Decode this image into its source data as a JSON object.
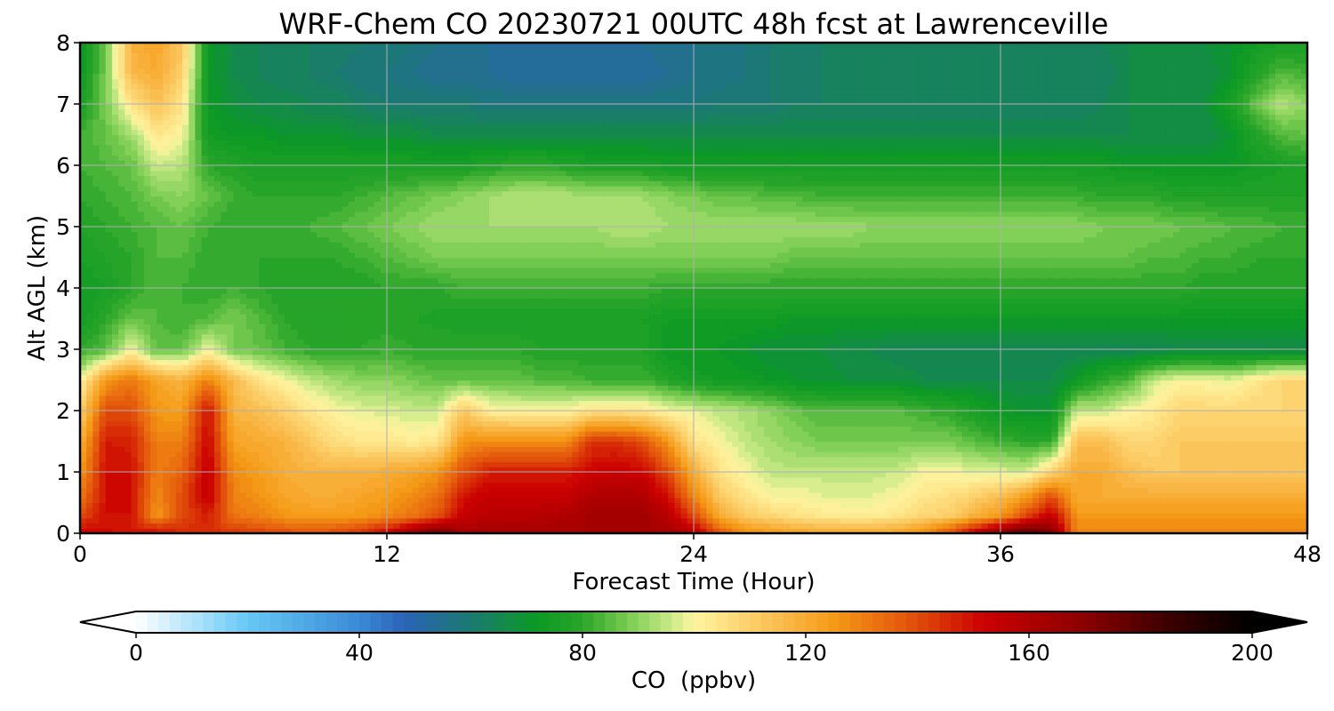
{
  "chart_data": {
    "type": "heatmap",
    "title": "WRF-Chem CO  20230721 00UTC 48h fcst at Lawrenceville",
    "xlabel": "Forecast Time (Hour)",
    "ylabel": "Alt AGL (km)",
    "xlim": [
      0,
      48
    ],
    "ylim": [
      0,
      8
    ],
    "xticks": [
      0,
      12,
      24,
      36,
      48
    ],
    "yticks": [
      0,
      1,
      2,
      3,
      4,
      5,
      6,
      7,
      8
    ],
    "grid": true,
    "x": [
      0,
      1,
      2,
      3,
      4,
      5,
      6,
      7,
      8,
      9,
      10,
      11,
      12,
      13,
      14,
      15,
      16,
      17,
      18,
      19,
      20,
      21,
      22,
      23,
      24,
      25,
      26,
      27,
      28,
      29,
      30,
      31,
      32,
      33,
      34,
      35,
      36,
      37,
      38,
      39,
      40,
      41,
      42,
      43,
      44,
      45,
      46,
      47,
      48
    ],
    "y": [
      0,
      0.05,
      0.3,
      0.6,
      1.0,
      1.5,
      2.0,
      2.5,
      3.0,
      3.5,
      4.0,
      4.5,
      5.0,
      5.5,
      6.0,
      6.5,
      7.0,
      7.5,
      8.0
    ],
    "values": [
      [
        150,
        152,
        150,
        150,
        148,
        148,
        146,
        142,
        140,
        138,
        140,
        145,
        155,
        175,
        185,
        165,
        165,
        165,
        165,
        165,
        165,
        165,
        165,
        165,
        160,
        140,
        130,
        128,
        125,
        122,
        122,
        120,
        125,
        130,
        140,
        160,
        175,
        185,
        180,
        130,
        128,
        128,
        128,
        128,
        128,
        128,
        128,
        128,
        128
      ],
      [
        150,
        150,
        148,
        148,
        145,
        145,
        142,
        140,
        138,
        136,
        138,
        142,
        148,
        160,
        170,
        162,
        162,
        162,
        162,
        162,
        162,
        162,
        162,
        162,
        155,
        135,
        125,
        122,
        120,
        118,
        118,
        118,
        120,
        125,
        135,
        150,
        165,
        175,
        168,
        128,
        128,
        128,
        128,
        128,
        128,
        128,
        128,
        128,
        128
      ],
      [
        140,
        150,
        150,
        125,
        140,
        148,
        132,
        130,
        125,
        124,
        124,
        125,
        128,
        132,
        138,
        154,
        157,
        157,
        158,
        160,
        163,
        163,
        163,
        158,
        140,
        120,
        112,
        108,
        105,
        103,
        102,
        102,
        104,
        108,
        110,
        118,
        125,
        140,
        155,
        125,
        125,
        125,
        125,
        125,
        125,
        125,
        125,
        125,
        125
      ],
      [
        132,
        150,
        150,
        128,
        140,
        154,
        130,
        126,
        122,
        120,
        120,
        122,
        124,
        128,
        134,
        150,
        154,
        154,
        154,
        154,
        160,
        160,
        160,
        150,
        130,
        112,
        105,
        100,
        100,
        98,
        98,
        98,
        100,
        104,
        106,
        110,
        115,
        125,
        140,
        120,
        120,
        120,
        120,
        120,
        120,
        120,
        120,
        120,
        120
      ],
      [
        125,
        150,
        150,
        130,
        136,
        155,
        128,
        124,
        120,
        118,
        118,
        118,
        120,
        122,
        126,
        140,
        148,
        148,
        148,
        148,
        152,
        154,
        152,
        140,
        120,
        105,
        100,
        95,
        95,
        95,
        95,
        95,
        96,
        100,
        100,
        98,
        98,
        96,
        110,
        120,
        120,
        115,
        112,
        112,
        112,
        112,
        112,
        112,
        112
      ],
      [
        118,
        148,
        147,
        130,
        130,
        152,
        122,
        120,
        118,
        112,
        106,
        104,
        104,
        102,
        104,
        126,
        128,
        128,
        128,
        128,
        144,
        144,
        140,
        125,
        105,
        100,
        95,
        92,
        90,
        88,
        88,
        88,
        88,
        88,
        88,
        85,
        82,
        80,
        80,
        115,
        115,
        108,
        108,
        112,
        112,
        112,
        112,
        112,
        112
      ],
      [
        110,
        140,
        140,
        125,
        124,
        150,
        118,
        115,
        110,
        104,
        100,
        98,
        97,
        96,
        96,
        112,
        102,
        100,
        100,
        100,
        105,
        105,
        104,
        100,
        98,
        95,
        93,
        90,
        86,
        84,
        84,
        84,
        84,
        82,
        80,
        76,
        72,
        70,
        70,
        96,
        95,
        100,
        103,
        108,
        108,
        108,
        108,
        108,
        108
      ],
      [
        100,
        125,
        132,
        122,
        118,
        130,
        116,
        105,
        100,
        95,
        92,
        90,
        90,
        88,
        86,
        86,
        86,
        86,
        84,
        84,
        82,
        82,
        82,
        78,
        75,
        74,
        73,
        72,
        70,
        70,
        68,
        68,
        68,
        66,
        66,
        66,
        66,
        66,
        66,
        72,
        80,
        84,
        96,
        100,
        100,
        98,
        104,
        108,
        108
      ],
      [
        80,
        85,
        100,
        85,
        86,
        100,
        88,
        86,
        82,
        80,
        80,
        80,
        82,
        80,
        80,
        80,
        80,
        80,
        78,
        78,
        78,
        78,
        78,
        72,
        72,
        72,
        70,
        68,
        68,
        68,
        66,
        66,
        64,
        64,
        64,
        64,
        64,
        64,
        64,
        64,
        64,
        64,
        64,
        66,
        66,
        66,
        66,
        66,
        66
      ],
      [
        74,
        80,
        86,
        84,
        82,
        84,
        88,
        84,
        80,
        78,
        78,
        78,
        78,
        78,
        77,
        76,
        76,
        76,
        76,
        76,
        76,
        76,
        76,
        74,
        74,
        74,
        74,
        74,
        72,
        72,
        72,
        72,
        72,
        72,
        72,
        72,
        72,
        72,
        72,
        72,
        72,
        72,
        72,
        72,
        72,
        72,
        72,
        72,
        72
      ],
      [
        74,
        76,
        80,
        84,
        82,
        80,
        82,
        80,
        78,
        78,
        78,
        78,
        80,
        80,
        80,
        82,
        82,
        82,
        82,
        82,
        82,
        82,
        82,
        80,
        80,
        80,
        80,
        80,
        80,
        80,
        80,
        80,
        80,
        80,
        80,
        80,
        80,
        80,
        80,
        80,
        80,
        80,
        80,
        80,
        78,
        78,
        78,
        78,
        78
      ],
      [
        76,
        78,
        80,
        84,
        84,
        80,
        80,
        80,
        80,
        80,
        80,
        82,
        84,
        86,
        88,
        88,
        88,
        88,
        88,
        88,
        88,
        88,
        88,
        88,
        88,
        88,
        88,
        88,
        86,
        86,
        86,
        86,
        86,
        86,
        86,
        86,
        86,
        86,
        86,
        86,
        86,
        86,
        84,
        84,
        82,
        82,
        80,
        80,
        80
      ],
      [
        78,
        80,
        82,
        84,
        86,
        82,
        80,
        80,
        80,
        82,
        84,
        86,
        88,
        90,
        92,
        92,
        92,
        92,
        92,
        92,
        92,
        94,
        94,
        92,
        92,
        92,
        92,
        92,
        92,
        92,
        92,
        90,
        90,
        90,
        90,
        90,
        90,
        90,
        90,
        90,
        88,
        88,
        88,
        86,
        86,
        84,
        84,
        82,
        82
      ],
      [
        80,
        82,
        84,
        88,
        90,
        86,
        82,
        80,
        80,
        80,
        80,
        82,
        84,
        86,
        88,
        90,
        92,
        94,
        94,
        94,
        92,
        92,
        92,
        90,
        88,
        86,
        86,
        84,
        84,
        82,
        82,
        82,
        82,
        82,
        82,
        82,
        82,
        82,
        82,
        82,
        80,
        80,
        80,
        78,
        78,
        78,
        78,
        78,
        78
      ],
      [
        82,
        84,
        86,
        96,
        94,
        80,
        78,
        76,
        76,
        76,
        76,
        76,
        76,
        76,
        76,
        76,
        78,
        80,
        80,
        78,
        76,
        76,
        76,
        74,
        74,
        74,
        74,
        74,
        74,
        74,
        74,
        74,
        74,
        74,
        74,
        74,
        74,
        74,
        74,
        74,
        74,
        72,
        72,
        72,
        72,
        72,
        74,
        76,
        78
      ],
      [
        82,
        86,
        92,
        104,
        100,
        74,
        72,
        72,
        70,
        70,
        70,
        68,
        68,
        68,
        66,
        66,
        66,
        66,
        66,
        66,
        66,
        66,
        66,
        66,
        66,
        66,
        66,
        66,
        66,
        66,
        66,
        66,
        66,
        66,
        66,
        66,
        66,
        66,
        66,
        66,
        66,
        66,
        66,
        66,
        66,
        70,
        78,
        84,
        86
      ],
      [
        76,
        88,
        104,
        114,
        104,
        72,
        68,
        66,
        66,
        64,
        64,
        62,
        60,
        60,
        60,
        60,
        58,
        58,
        58,
        58,
        58,
        58,
        58,
        58,
        58,
        60,
        60,
        60,
        62,
        62,
        62,
        62,
        62,
        62,
        62,
        62,
        62,
        62,
        62,
        62,
        64,
        66,
        66,
        66,
        68,
        76,
        86,
        94,
        90
      ],
      [
        72,
        88,
        116,
        120,
        110,
        72,
        66,
        64,
        62,
        62,
        60,
        58,
        58,
        56,
        54,
        54,
        54,
        52,
        52,
        52,
        52,
        52,
        52,
        54,
        56,
        56,
        58,
        60,
        60,
        62,
        62,
        62,
        62,
        62,
        62,
        62,
        62,
        62,
        62,
        62,
        62,
        66,
        66,
        66,
        66,
        70,
        78,
        84,
        82
      ],
      [
        72,
        86,
        118,
        122,
        112,
        72,
        66,
        64,
        62,
        62,
        62,
        60,
        60,
        58,
        56,
        56,
        54,
        54,
        54,
        54,
        54,
        54,
        54,
        56,
        56,
        58,
        58,
        60,
        60,
        62,
        62,
        62,
        62,
        62,
        62,
        62,
        62,
        62,
        62,
        62,
        64,
        66,
        66,
        68,
        68,
        70,
        74,
        76,
        76
      ]
    ],
    "colorbar": {
      "label": "CO  (ppbv)",
      "min": 0,
      "max": 200,
      "ticks": [
        0,
        40,
        80,
        120,
        160,
        200
      ],
      "extend": "both",
      "levels": 100
    },
    "colormap_stops": [
      {
        "v": 0,
        "c": "#ffffff"
      },
      {
        "v": 20,
        "c": "#66c8f5"
      },
      {
        "v": 40,
        "c": "#3a8ad6"
      },
      {
        "v": 48,
        "c": "#2b63b8"
      },
      {
        "v": 60,
        "c": "#1b7a70"
      },
      {
        "v": 72,
        "c": "#0b9a23"
      },
      {
        "v": 80,
        "c": "#2aa52a"
      },
      {
        "v": 88,
        "c": "#78cc50"
      },
      {
        "v": 96,
        "c": "#c9ea88"
      },
      {
        "v": 100,
        "c": "#fff5a0"
      },
      {
        "v": 112,
        "c": "#fcc860"
      },
      {
        "v": 125,
        "c": "#f59a16"
      },
      {
        "v": 140,
        "c": "#e04c0a"
      },
      {
        "v": 152,
        "c": "#cc0000"
      },
      {
        "v": 170,
        "c": "#8a0000"
      },
      {
        "v": 185,
        "c": "#3c0000"
      },
      {
        "v": 200,
        "c": "#000000"
      }
    ]
  }
}
